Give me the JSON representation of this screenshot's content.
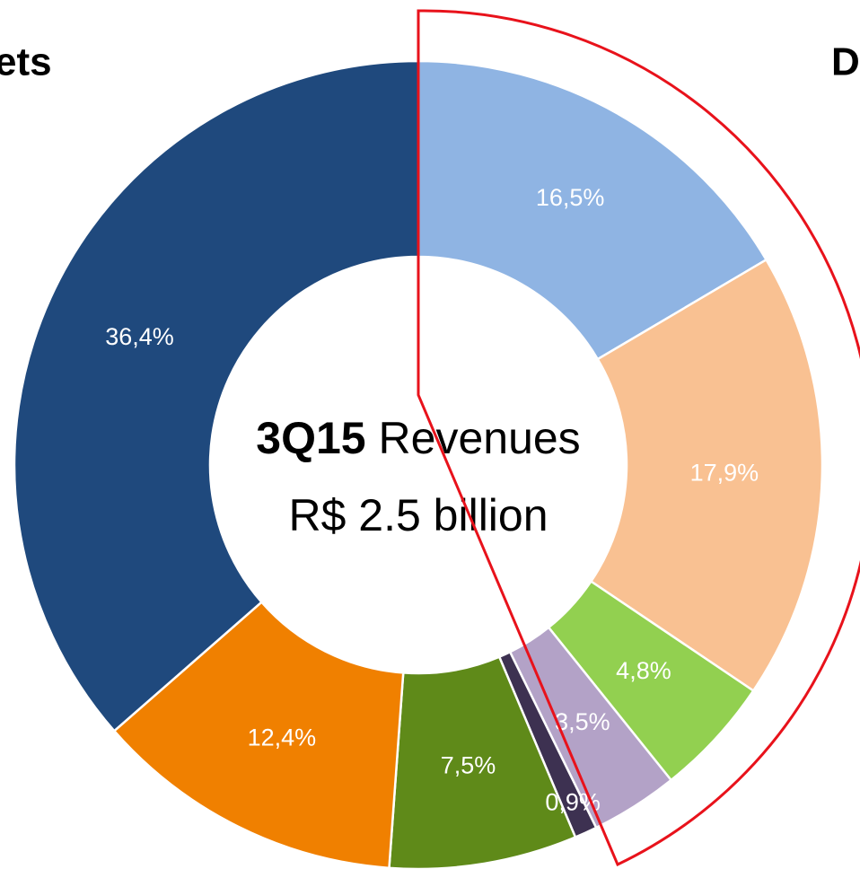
{
  "chart_data": {
    "type": "pie",
    "title_bold": "3Q15",
    "title": "Revenues",
    "subtitle": "R$ 2.5 billion",
    "annotations": [
      "ets",
      "D"
    ],
    "values": [
      16.5,
      17.9,
      4.8,
      3.5,
      0.9,
      7.5,
      12.4,
      36.4
    ],
    "value_labels": [
      "16,5%",
      "17,9%",
      "4,8%",
      "3,5%",
      "0,9%",
      "7,5%",
      "12,4%",
      "36,4%"
    ],
    "colors": [
      "#8fb4e3",
      "#f9c192",
      "#92d050",
      "#b3a2c7",
      "#3d3151",
      "#5f8a19",
      "#f08000",
      "#1f497d"
    ],
    "label_colors": [
      "#ffffff",
      "#ffffff",
      "#ffffff",
      "#ffffff",
      "#ffffff",
      "#ffffff",
      "#ffffff",
      "#ffffff"
    ]
  }
}
